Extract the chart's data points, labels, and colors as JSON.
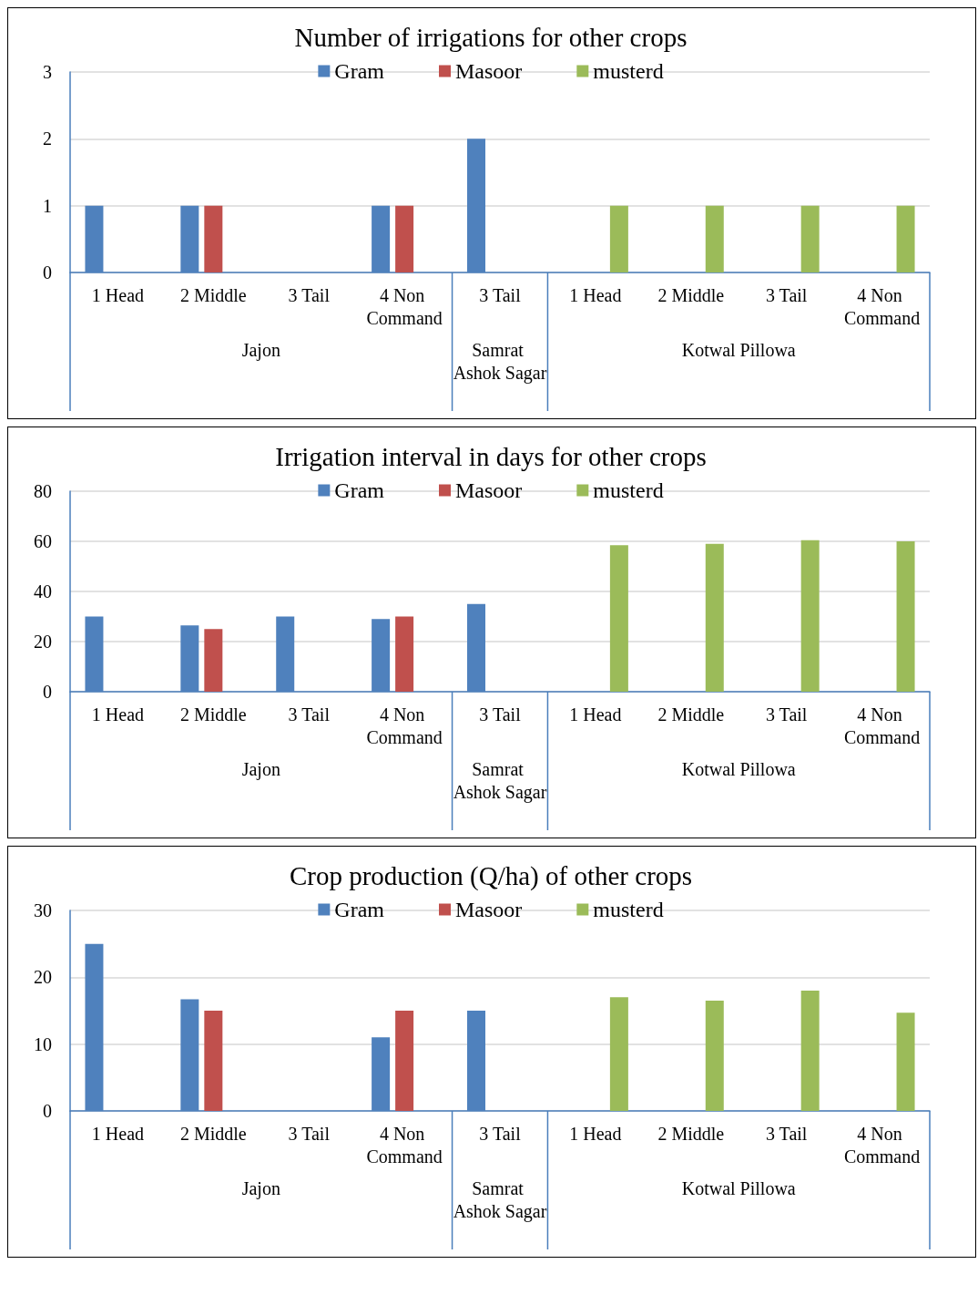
{
  "chart_data": [
    {
      "type": "bar",
      "title": "Number of irrigations for other crops",
      "categories": [
        "1 Head",
        "2 Middle",
        "3 Tail",
        "4 Non Command",
        "3 Tail",
        "1 Head",
        "2 Middle",
        "3 Tail",
        "4 Non Command"
      ],
      "series": [
        {
          "name": "Gram",
          "color": "#4f81bd",
          "values": [
            1,
            1,
            null,
            1,
            2,
            null,
            null,
            null,
            null
          ]
        },
        {
          "name": "Masoor",
          "color": "#c0504d",
          "values": [
            null,
            1,
            null,
            1,
            null,
            null,
            null,
            null,
            null
          ]
        },
        {
          "name": "musterd",
          "color": "#9bbb59",
          "values": [
            null,
            null,
            null,
            null,
            null,
            1,
            1,
            1,
            1
          ]
        }
      ],
      "ylim": [
        0,
        3
      ],
      "yticks": [
        0,
        1,
        2,
        3
      ],
      "grid": "y",
      "legend": "top",
      "annotations": [
        "Jajon",
        "Samrat Ashok Sagar",
        "Kotwal Pillowa"
      ]
    },
    {
      "type": "bar",
      "title": "Irrigation interval in days for other crops",
      "categories": [
        "1 Head",
        "2 Middle",
        "3 Tail",
        "4 Non Command",
        "3 Tail",
        "1 Head",
        "2 Middle",
        "3 Tail",
        "4 Non Command"
      ],
      "series": [
        {
          "name": "Gram",
          "color": "#4f81bd",
          "values": [
            30,
            26.5,
            30,
            29,
            35,
            null,
            null,
            null,
            null
          ]
        },
        {
          "name": "Masoor",
          "color": "#c0504d",
          "values": [
            null,
            25,
            null,
            30,
            null,
            null,
            null,
            null,
            null
          ]
        },
        {
          "name": "musterd",
          "color": "#9bbb59",
          "values": [
            null,
            null,
            null,
            null,
            null,
            58.5,
            59,
            60.5,
            60
          ]
        }
      ],
      "ylim": [
        0,
        80
      ],
      "yticks": [
        0,
        20,
        40,
        60,
        80
      ],
      "grid": "y",
      "legend": "top",
      "annotations": [
        "Jajon",
        "Samrat Ashok Sagar",
        "Kotwal Pillowa"
      ]
    },
    {
      "type": "bar",
      "title": "Crop production (Q/ha) of other crops",
      "categories": [
        "1 Head",
        "2 Middle",
        "3 Tail",
        "4 Non Command",
        "3 Tail",
        "1 Head",
        "2 Middle",
        "3 Tail",
        "4 Non Command"
      ],
      "series": [
        {
          "name": "Gram",
          "color": "#4f81bd",
          "values": [
            25,
            16.7,
            null,
            11,
            15,
            null,
            null,
            null,
            null
          ]
        },
        {
          "name": "Masoor",
          "color": "#c0504d",
          "values": [
            null,
            15,
            null,
            15,
            null,
            null,
            null,
            null,
            null
          ]
        },
        {
          "name": "musterd",
          "color": "#9bbb59",
          "values": [
            null,
            null,
            null,
            null,
            null,
            17,
            16.5,
            18,
            14.7
          ]
        }
      ],
      "ylim": [
        0,
        30
      ],
      "yticks": [
        0,
        10,
        20,
        30
      ],
      "grid": "y",
      "legend": "top",
      "annotations": [
        "Jajon",
        "Samrat Ashok Sagar",
        "Kotwal Pillowa"
      ]
    }
  ]
}
